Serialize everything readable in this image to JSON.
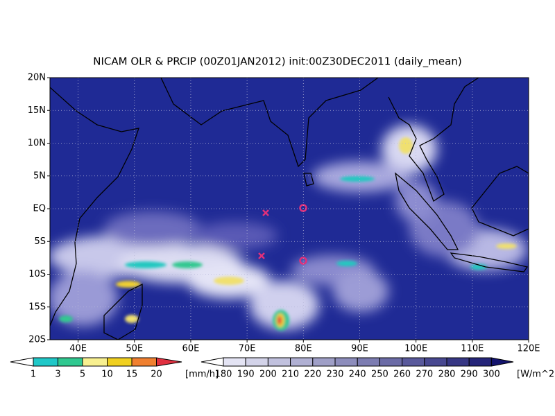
{
  "title": "NICAM OLR & PRCIP (00Z01JAN2012) init:00Z30DEC2011 (daily_mean)",
  "lat_labels": [
    "20N",
    "15N",
    "10N",
    "5N",
    "EQ",
    "5S",
    "10S",
    "15S",
    "20S"
  ],
  "lon_labels": [
    "40E",
    "50E",
    "60E",
    "70E",
    "80E",
    "90E",
    "100E",
    "110E",
    "120E"
  ],
  "precip_colorbar": {
    "labels": [
      1,
      3,
      5,
      10,
      15,
      20
    ],
    "unit": "[mm/h]"
  },
  "olr_colorbar": {
    "labels": [
      180,
      190,
      200,
      210,
      220,
      230,
      240,
      250,
      260,
      270,
      280,
      290,
      300
    ],
    "unit": "[W/m^2]"
  }
}
